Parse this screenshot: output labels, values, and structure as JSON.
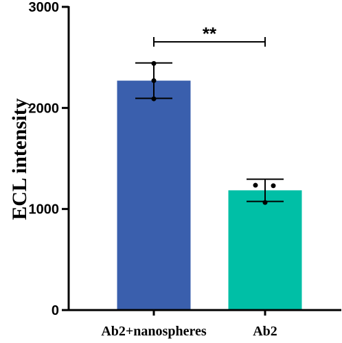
{
  "chart_data": {
    "type": "bar",
    "title": "",
    "xlabel": "",
    "ylabel": "ECL intensity",
    "ylim": [
      0,
      3000
    ],
    "yticks": [
      0,
      1000,
      2000,
      3000
    ],
    "grid": false,
    "categories": [
      "Ab2+nanospheres",
      "Ab2"
    ],
    "values": [
      2270,
      1185
    ],
    "error": [
      175,
      110
    ],
    "points": [
      [
        2440,
        2270,
        2090
      ],
      [
        1235,
        1230,
        1065
      ]
    ],
    "colors": [
      "#3a5fad",
      "#00bfa6"
    ],
    "significance": {
      "between": [
        0,
        1
      ],
      "label": "**"
    }
  }
}
